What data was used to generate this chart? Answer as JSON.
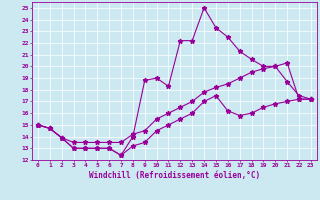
{
  "xlabel": "Windchill (Refroidissement éolien,°C)",
  "bg_color": "#cce8f0",
  "line_color": "#990099",
  "xlim": [
    -0.5,
    23.5
  ],
  "ylim": [
    12,
    25.5
  ],
  "xticks": [
    0,
    1,
    2,
    3,
    4,
    5,
    6,
    7,
    8,
    9,
    10,
    11,
    12,
    13,
    14,
    15,
    16,
    17,
    18,
    19,
    20,
    21,
    22,
    23
  ],
  "yticks": [
    12,
    13,
    14,
    15,
    16,
    17,
    18,
    19,
    20,
    21,
    22,
    23,
    24,
    25
  ],
  "line1_x": [
    0,
    1,
    2,
    3,
    4,
    5,
    6,
    7,
    8,
    9,
    10,
    11,
    12,
    13,
    14,
    15,
    16,
    17,
    18,
    19,
    20,
    21,
    22,
    23
  ],
  "line1_y": [
    15.0,
    14.7,
    13.9,
    13.0,
    13.0,
    13.0,
    13.0,
    12.4,
    14.0,
    18.8,
    19.0,
    18.3,
    22.2,
    22.2,
    25.0,
    23.3,
    22.5,
    21.3,
    20.6,
    20.0,
    20.0,
    18.7,
    17.5,
    17.2
  ],
  "line2_x": [
    0,
    1,
    2,
    3,
    4,
    5,
    6,
    7,
    8,
    9,
    10,
    11,
    12,
    13,
    14,
    15,
    16,
    17,
    18,
    19,
    20,
    21,
    22,
    23
  ],
  "line2_y": [
    15.0,
    14.7,
    13.9,
    13.5,
    13.5,
    13.5,
    13.5,
    13.5,
    14.2,
    14.5,
    15.5,
    16.0,
    16.5,
    17.0,
    17.8,
    18.2,
    18.5,
    19.0,
    19.5,
    19.8,
    20.0,
    20.3,
    17.2,
    17.2
  ],
  "line3_x": [
    0,
    1,
    2,
    3,
    4,
    5,
    6,
    7,
    8,
    9,
    10,
    11,
    12,
    13,
    14,
    15,
    16,
    17,
    18,
    19,
    20,
    21,
    22,
    23
  ],
  "line3_y": [
    15.0,
    14.7,
    13.9,
    13.0,
    13.0,
    13.0,
    13.0,
    12.4,
    13.2,
    13.5,
    14.5,
    15.0,
    15.5,
    16.0,
    17.0,
    17.5,
    16.2,
    15.8,
    16.0,
    16.5,
    16.8,
    17.0,
    17.2,
    17.2
  ],
  "tick_fontsize": 4.5,
  "xlabel_fontsize": 5.5,
  "marker_size": 3.5,
  "line_width": 0.8
}
